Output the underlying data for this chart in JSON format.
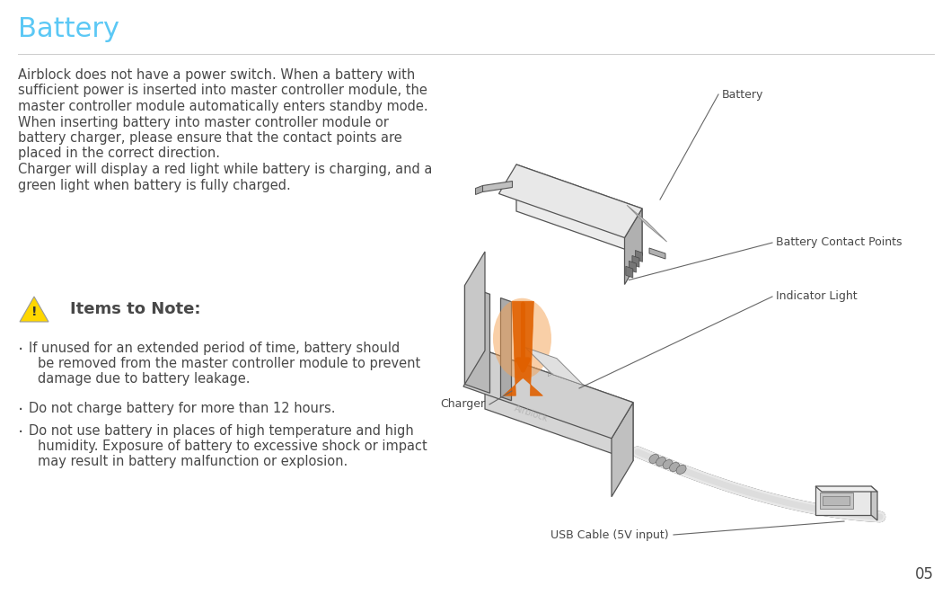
{
  "title": "Battery",
  "title_color": "#5BC8F5",
  "title_fontsize": 22,
  "bg_color": "#FFFFFF",
  "text_color": "#484848",
  "body_text_lines": [
    "Airblock does not have a power switch. When a battery with",
    "sufficient power is inserted into master controller module, the",
    "master controller module automatically enters standby mode.",
    "When inserting battery into master controller module or",
    "battery charger, please ensure that the contact points are",
    "placed in the correct direction.",
    "Charger will display a red light while battery is charging, and a",
    "green light when battery is fully charged."
  ],
  "note_header": "Items to Note:",
  "note_items": [
    [
      "If unused for an extended period of time, battery should",
      "be removed from the master controller module to prevent",
      "damage due to battery leakage."
    ],
    [
      "Do not charge battery for more than 12 hours."
    ],
    [
      "Do not use battery in places of high temperature and high",
      "humidity. Exposure of battery to excessive shock or impact",
      "may result in battery malfunction or explosion."
    ]
  ],
  "page_number": "05",
  "warning_tri_color": "#FFD700",
  "warn_border": "#999999",
  "body_fontsize": 10.5,
  "note_fontsize": 10.5,
  "note_header_fontsize": 13,
  "label_fontsize": 9,
  "line_color": "#555555",
  "gray_dark": "#808080",
  "gray_mid": "#b0b0b0",
  "gray_light": "#d8d8d8",
  "gray_lighter": "#ececec",
  "orange_main": "#E06000",
  "orange_light": "#F5A050"
}
